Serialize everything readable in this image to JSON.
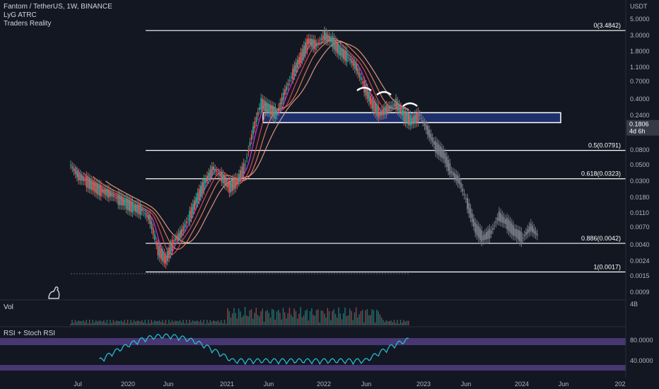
{
  "legend": {
    "symbol": "Fantom / TetherUS, 1W, BINANCE",
    "indicator1": "LyG ATRC",
    "indicator2": "Traders Reality"
  },
  "panes": {
    "volume_label": "Vol",
    "rsi_label": "RSI + Stoch RSI"
  },
  "chart_data": {
    "type": "candlestick",
    "currency": "USDT",
    "price_scale": "log",
    "y_ticks": [
      "5.0000",
      "3.0000",
      "1.8000",
      "1.1000",
      "0.7000",
      "0.4000",
      "0.2400",
      "0.0800",
      "0.0500",
      "0.0300",
      "0.0180",
      "0.0110",
      "0.0070",
      "0.0040",
      "0.0024",
      "0.0015",
      "0.0009"
    ],
    "last_price": "0.1806",
    "countdown": "4d 6h",
    "x_ticks": [
      "Jul",
      "2020",
      "Jun",
      "2021",
      "Jun",
      "2022",
      "Jun",
      "2023",
      "Jun",
      "2024",
      "Jun",
      "202"
    ],
    "fib_levels": [
      {
        "label": "0(3.4842)",
        "value": 3.4842
      },
      {
        "label": "0.5(0.0791)",
        "value": 0.0791
      },
      {
        "label": "0.618(0.0323)",
        "value": 0.0323
      },
      {
        "label": "0.886(0.0042)",
        "value": 0.0042
      },
      {
        "label": "1(0.0017)",
        "value": 0.0017
      }
    ],
    "zone": {
      "low": 0.19,
      "high": 0.26
    },
    "price_path": [
      0.05,
      0.035,
      0.03,
      0.025,
      0.022,
      0.02,
      0.017,
      0.015,
      0.013,
      0.012,
      0.009,
      0.0035,
      0.0025,
      0.0045,
      0.006,
      0.01,
      0.018,
      0.03,
      0.045,
      0.035,
      0.025,
      0.03,
      0.05,
      0.15,
      0.35,
      0.3,
      0.25,
      0.5,
      0.9,
      1.5,
      2.5,
      2.2,
      3.0,
      2.5,
      1.8,
      1.5,
      1.1,
      0.6,
      0.35,
      0.25,
      0.3,
      0.35,
      0.24,
      0.2,
      0.24,
      0.15,
      0.09,
      0.07,
      0.04,
      0.03,
      0.015,
      0.007,
      0.005,
      0.006,
      0.01,
      0.008,
      0.006,
      0.005,
      0.007,
      0.0052
    ],
    "rsi_ticks": [
      "80.0000",
      "40.0000"
    ],
    "volume_tick": "4B"
  }
}
